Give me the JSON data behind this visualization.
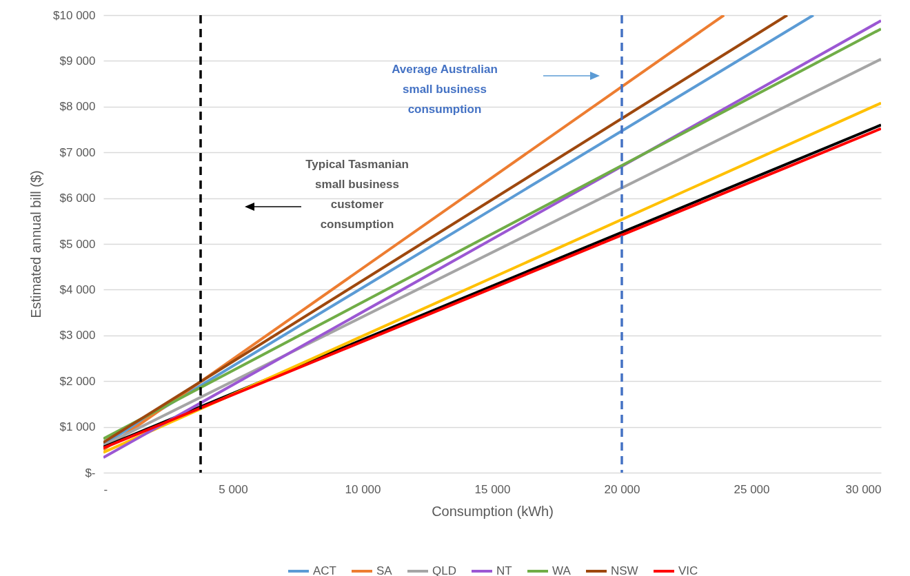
{
  "chart_data": {
    "type": "line",
    "xlabel": "Consumption (kWh)",
    "ylabel": "Estimated annual bill ($)",
    "xlim": [
      0,
      30000
    ],
    "ylim": [
      0,
      10000
    ],
    "xticks": [
      {
        "value": 0,
        "label": "-"
      },
      {
        "value": 5000,
        "label": "5 000"
      },
      {
        "value": 10000,
        "label": "10 000"
      },
      {
        "value": 15000,
        "label": "15 000"
      },
      {
        "value": 20000,
        "label": "20 000"
      },
      {
        "value": 25000,
        "label": "25 000"
      },
      {
        "value": 30000,
        "label": "30 000"
      }
    ],
    "yticks": [
      {
        "value": 0,
        "label": "$-"
      },
      {
        "value": 1000,
        "label": "$1 000"
      },
      {
        "value": 2000,
        "label": "$2 000"
      },
      {
        "value": 3000,
        "label": "$3 000"
      },
      {
        "value": 4000,
        "label": "$4 000"
      },
      {
        "value": 5000,
        "label": "$5 000"
      },
      {
        "value": 6000,
        "label": "$6 000"
      },
      {
        "value": 7000,
        "label": "$7 000"
      },
      {
        "value": 8000,
        "label": "$8 000"
      },
      {
        "value": 9000,
        "label": "$9 000"
      },
      {
        "value": 10000,
        "label": "$10 000"
      }
    ],
    "grid": "y",
    "legend": "bottom",
    "marker": "none",
    "line_style": "solid",
    "series": [
      {
        "name": "ACT",
        "color": "#5b9bd5",
        "x": [
          0,
          27390
        ],
        "values": [
          620,
          10000
        ]
      },
      {
        "name": "SA",
        "color": "#ed7d31",
        "x": [
          0,
          23940
        ],
        "values": [
          500,
          10000
        ]
      },
      {
        "name": "QLD",
        "color": "#a5a5a5",
        "x": [
          0,
          30000
        ],
        "values": [
          590,
          9040
        ]
      },
      {
        "color": "#000000",
        "x": [
          0,
          30000
        ],
        "values": [
          560,
          7600
        ]
      },
      {
        "color": "#ffc000",
        "x": [
          0,
          30000
        ],
        "values": [
          440,
          8080
        ]
      },
      {
        "name": "NT",
        "color": "#9b57d3",
        "x": [
          0,
          30000
        ],
        "values": [
          330,
          9880
        ]
      },
      {
        "name": "WA",
        "color": "#70ad47",
        "x": [
          0,
          30000
        ],
        "values": [
          740,
          9700
        ]
      },
      {
        "name": "NSW",
        "color": "#9e480e",
        "x": [
          0,
          26380
        ],
        "values": [
          660,
          10000
        ]
      },
      {
        "name": "VIC",
        "color": "#ff0000",
        "x": [
          0,
          30000
        ],
        "values": [
          540,
          7520
        ]
      }
    ],
    "ref_lines": [
      {
        "axis": "x",
        "value": 3750,
        "color": "#000000",
        "line_style": "dashed"
      },
      {
        "axis": "x",
        "value": 20000,
        "color": "#4472c4",
        "line_style": "dashed"
      }
    ],
    "annotations": [
      "Typical Tasmanian\nsmall business\ncustomer\nconsumption",
      "Average Australian\nsmall business\nconsumption"
    ]
  }
}
